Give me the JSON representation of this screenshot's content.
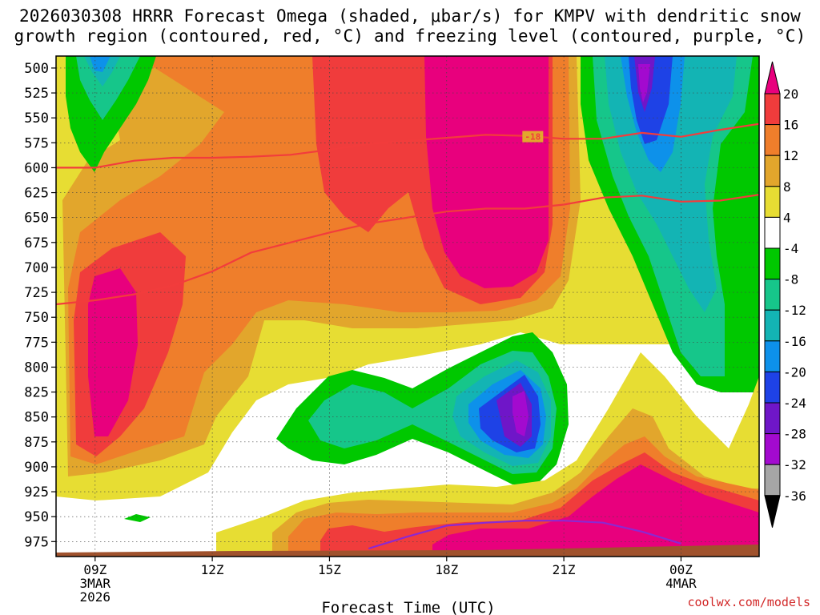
{
  "title_line1": "2026030308 HRRR Forecast Omega (shaded, μbar/s) for KMPV with dendritic snow",
  "title_line2": "growth region (contoured, red, °C) and freezing level (contoured, purple, °C)",
  "xlabel": "Forecast Time (UTC)",
  "credit": "coolwx.com/models",
  "chart_data": {
    "type": "heatmap",
    "model_run": "2026030308",
    "station": "KMPV",
    "x_ticks": [
      {
        "hour": 9,
        "label": "09Z",
        "date1": "3MAR",
        "date2": "2026"
      },
      {
        "hour": 12,
        "label": "12Z",
        "date1": "",
        "date2": ""
      },
      {
        "hour": 15,
        "label": "15Z",
        "date1": "",
        "date2": ""
      },
      {
        "hour": 18,
        "label": "18Z",
        "date1": "",
        "date2": ""
      },
      {
        "hour": 21,
        "label": "21Z",
        "date1": "",
        "date2": ""
      },
      {
        "hour": 24,
        "label": "00Z",
        "date1": "4MAR",
        "date2": ""
      }
    ],
    "x_range_hours": [
      8,
      26
    ],
    "y_ticks": [
      500,
      525,
      550,
      575,
      600,
      625,
      650,
      675,
      700,
      725,
      750,
      775,
      800,
      825,
      850,
      875,
      900,
      925,
      950,
      975
    ],
    "y_range_mb": [
      488,
      990
    ],
    "colorbar": {
      "labels": [
        "20",
        "16",
        "12",
        "8",
        "4",
        "-4",
        "-8",
        "-12",
        "-16",
        "-20",
        "-24",
        "-28",
        "-32",
        "-36"
      ],
      "colors": [
        "#e8007d",
        "#f03c3c",
        "#ef7e2b",
        "#e2a62c",
        "#e7dd33",
        "#ffffff",
        "#00c800",
        "#16c68a",
        "#13b4b4",
        "#0d91ea",
        "#1e42e6",
        "#6f16c8",
        "#a30acf",
        "#a6a6a6",
        "#000000"
      ]
    },
    "contours": [
      {
        "name": "dendritic-snow-top",
        "label": "-18",
        "color": "#f23c3c",
        "points": [
          [
            8.0,
            600
          ],
          [
            9.0,
            600
          ],
          [
            10.0,
            593
          ],
          [
            11.0,
            590
          ],
          [
            12.0,
            590
          ],
          [
            13.0,
            589
          ],
          [
            14.0,
            587
          ],
          [
            15.0,
            582
          ],
          [
            16.0,
            576
          ],
          [
            17.0,
            573
          ],
          [
            18.0,
            570
          ],
          [
            19.0,
            567
          ],
          [
            20.0,
            568
          ],
          [
            21.0,
            571
          ],
          [
            22.0,
            571
          ],
          [
            23.0,
            565
          ],
          [
            24.0,
            569
          ],
          [
            25.0,
            562
          ],
          [
            26.0,
            556
          ]
        ]
      },
      {
        "name": "dendritic-snow-bottom",
        "label": "",
        "color": "#f23c3c",
        "points": [
          [
            8.0,
            737
          ],
          [
            9.0,
            733
          ],
          [
            10.0,
            727
          ],
          [
            11.0,
            718
          ],
          [
            12.0,
            704
          ],
          [
            13.0,
            685
          ],
          [
            14.0,
            675
          ],
          [
            15.0,
            665
          ],
          [
            16.0,
            656
          ],
          [
            17.0,
            650
          ],
          [
            18.0,
            644
          ],
          [
            19.0,
            641
          ],
          [
            20.0,
            641
          ],
          [
            21.0,
            637
          ],
          [
            22.0,
            630
          ],
          [
            23.0,
            628
          ],
          [
            24.0,
            634
          ],
          [
            25.0,
            633
          ],
          [
            26.0,
            627
          ]
        ]
      },
      {
        "name": "freezing-level",
        "label": "",
        "color": "#8c28d2",
        "points": [
          [
            16.0,
            982
          ],
          [
            17.0,
            970
          ],
          [
            18.0,
            959
          ],
          [
            19.0,
            956
          ],
          [
            20.0,
            954
          ],
          [
            21.0,
            954
          ],
          [
            22.0,
            956
          ],
          [
            23.0,
            965
          ],
          [
            24.0,
            977
          ]
        ]
      }
    ]
  }
}
